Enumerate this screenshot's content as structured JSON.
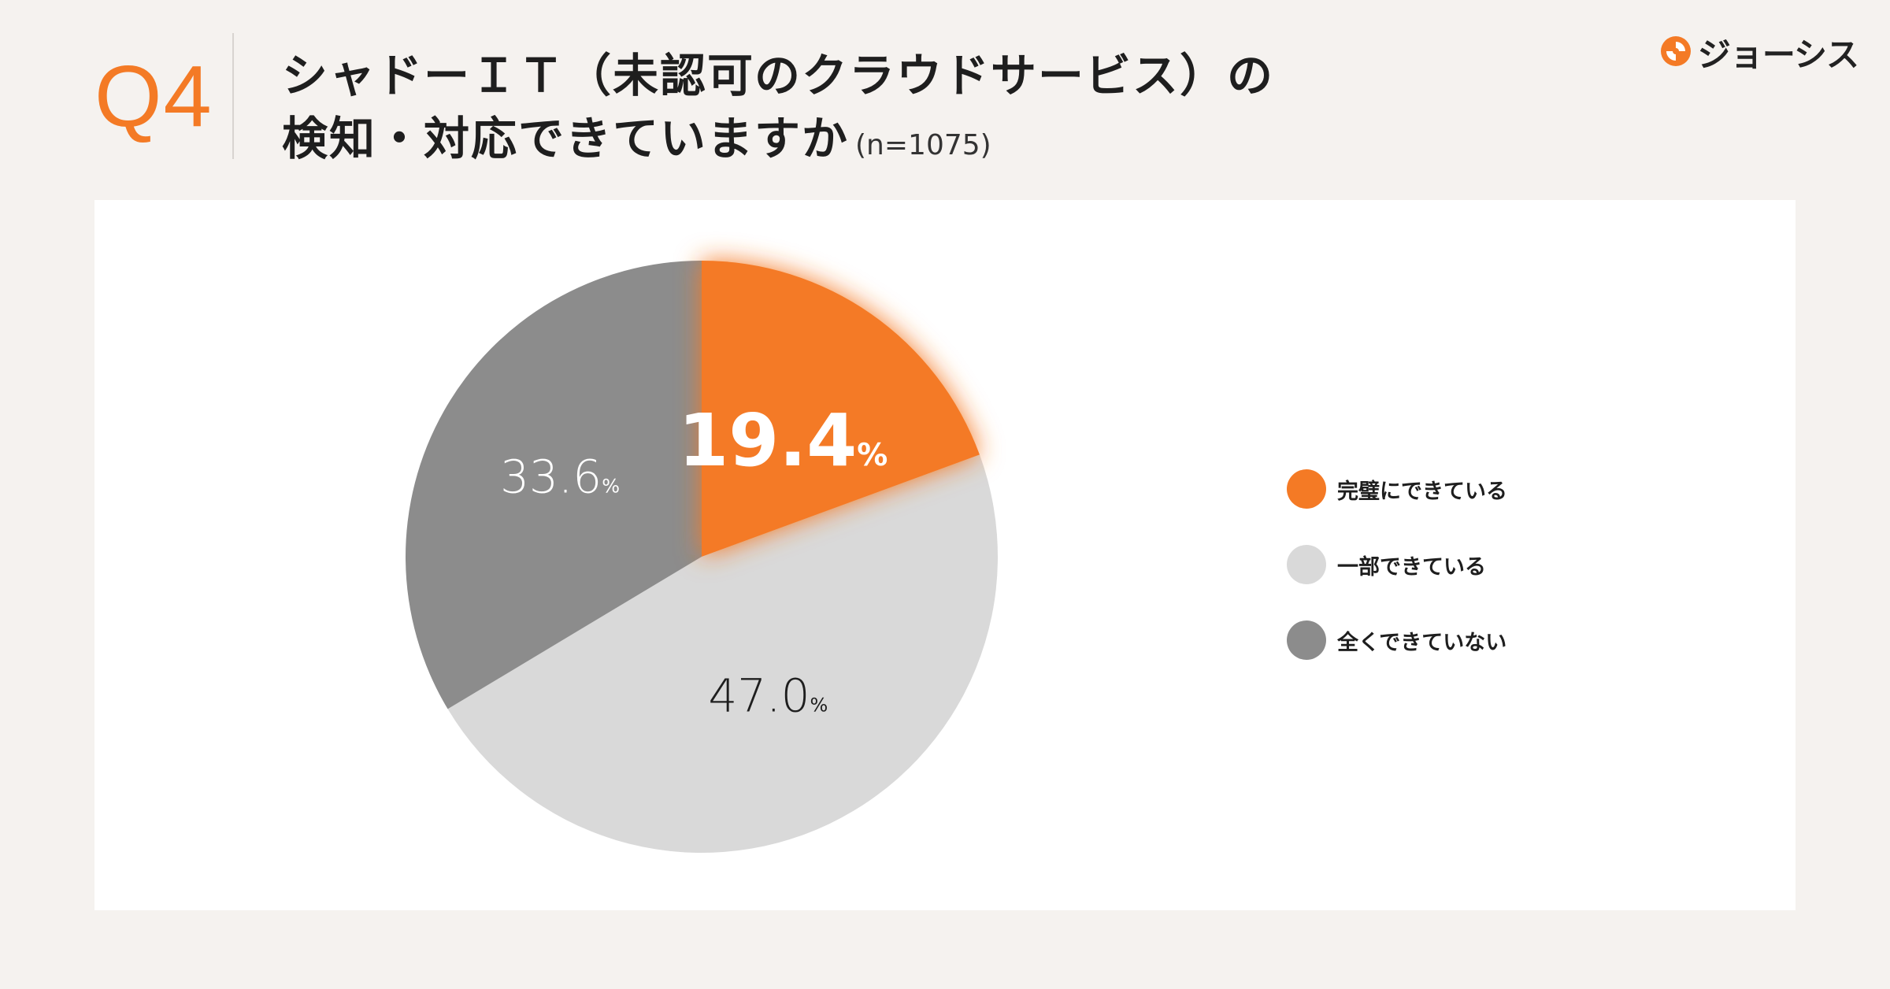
{
  "header": {
    "question_number": "Q4",
    "title_line1": "シャドーＩＴ（未認可のクラウドサービス）の",
    "title_line2": "検知・対応できていますか",
    "sample_size": "(n=1075)"
  },
  "logo": {
    "text": "ジョーシス",
    "icon": "josys-logo-icon"
  },
  "colors": {
    "accent": "#f47a25",
    "partial": "#d9d9d9",
    "none": "#8c8c8c",
    "background": "#f5f2ef"
  },
  "chart_data": {
    "type": "pie",
    "title": "",
    "unit": "%",
    "legend_position": "right",
    "slices": [
      {
        "label": "完璧にできている",
        "value": 19.4,
        "display": "19.4",
        "color": "#f47a25",
        "highlight": true
      },
      {
        "label": "一部できている",
        "value": 47.0,
        "display": "47.0",
        "color": "#d9d9d9",
        "highlight": false
      },
      {
        "label": "全くできていない",
        "value": 33.6,
        "display": "33.6",
        "color": "#8c8c8c",
        "highlight": false
      }
    ]
  }
}
